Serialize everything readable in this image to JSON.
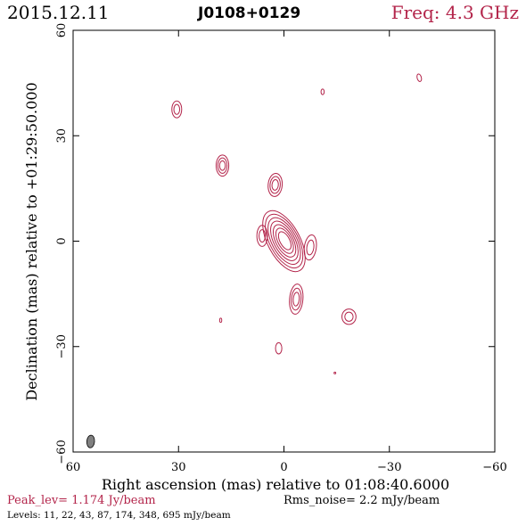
{
  "header": {
    "date": "2015.12.11",
    "source": "J0108+0129",
    "freq": "Freq: 4.3 GHz"
  },
  "footer": {
    "peak": "Peak_lev=  1.174 Jy/beam",
    "rms": "Rms_noise=   2.2 mJy/beam",
    "levels": "Levels:  11,  22,  43,  87,  174,  348,  695  mJy/beam"
  },
  "colors": {
    "contour": "#b3244a",
    "beam": "#808080"
  },
  "chart_data": {
    "type": "contour",
    "xlabel": "Right ascension (mas) relative to 01:08:40.6000",
    "ylabel": "Declination (mas) relative to +01:29:50.000",
    "xlim": [
      60,
      -60
    ],
    "ylim": [
      -60,
      60
    ],
    "xticks": [
      60,
      30,
      0,
      -30,
      -60
    ],
    "yticks": [
      -60,
      -30,
      0,
      30,
      60
    ],
    "xtick_labels": [
      "60",
      "30",
      "0",
      "−30",
      "−60"
    ],
    "ytick_labels": [
      "−60",
      "−30",
      "0",
      "30",
      "60"
    ],
    "levels_mjy": [
      11,
      22,
      43,
      87,
      174,
      348,
      695
    ],
    "peak_jy_per_beam": 1.174,
    "rms_mjy_per_beam": 2.2,
    "beam": {
      "x": 55,
      "y": -57,
      "major": 3.6,
      "minor": 2.2,
      "pa": 5
    },
    "components": [
      {
        "x": 0,
        "y": 0,
        "sx": 4.6,
        "sy": 9.5,
        "pa": -28,
        "n": 7
      },
      {
        "x": 6.2,
        "y": 1.5,
        "sx": 1.5,
        "sy": 3.0,
        "pa": 0,
        "n": 2
      },
      {
        "x": -7.5,
        "y": -1.8,
        "sx": 1.7,
        "sy": 3.6,
        "pa": 8,
        "n": 2
      },
      {
        "x": 2.5,
        "y": 16,
        "sx": 2.0,
        "sy": 3.3,
        "pa": 5,
        "n": 3
      },
      {
        "x": -3.5,
        "y": -16.5,
        "sx": 1.9,
        "sy": 4.3,
        "pa": 5,
        "n": 3
      },
      {
        "x": 17.5,
        "y": 21.5,
        "sx": 1.8,
        "sy": 3.0,
        "pa": 0,
        "n": 3
      },
      {
        "x": 30.5,
        "y": 37.5,
        "sx": 1.4,
        "sy": 2.4,
        "pa": 0,
        "n": 2
      },
      {
        "x": -18.5,
        "y": -21.5,
        "sx": 2.0,
        "sy": 2.2,
        "pa": 0,
        "n": 2
      },
      {
        "x": 1.5,
        "y": -30.5,
        "sx": 0.9,
        "sy": 1.6,
        "pa": 0,
        "n": 1
      },
      {
        "x": -38.5,
        "y": 46.5,
        "sx": 0.6,
        "sy": 1.1,
        "pa": -15,
        "n": 1
      },
      {
        "x": -11,
        "y": 42.5,
        "sx": 0.45,
        "sy": 0.8,
        "pa": 0,
        "n": 1
      },
      {
        "x": 18,
        "y": -22.5,
        "sx": 0.3,
        "sy": 0.6,
        "pa": 0,
        "n": 1
      },
      {
        "x": -14.5,
        "y": -37.5,
        "sx": 0.25,
        "sy": 0.25,
        "pa": 0,
        "n": 1
      }
    ]
  }
}
